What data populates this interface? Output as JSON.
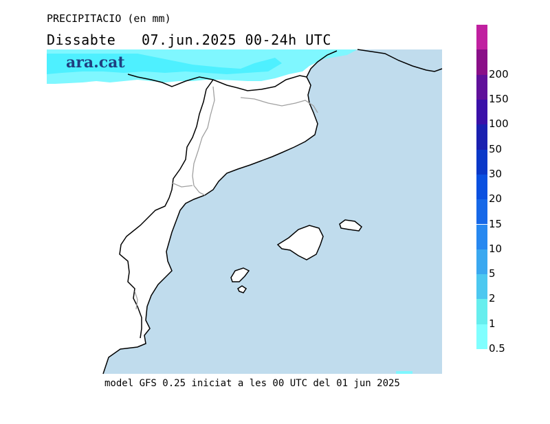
{
  "header": {
    "variable": "PRECIPITACIO (en mm)",
    "date_line": "Dissabte   07.jun.2025 00-24h UTC"
  },
  "brand": {
    "name": "ara.cat"
  },
  "footer": {
    "model_line": "model GFS 0.25 iniciat a les 00 UTC del 01 jun 2025"
  },
  "colors": {
    "sea": "#c0dced",
    "land": "#ffffff",
    "coastline": "#000000",
    "region_border": "#a0a0a0",
    "precip_light": "#7ff7ff",
    "precip_mid": "#4ef0ff"
  },
  "legend": {
    "levels": [
      {
        "label": "0.5",
        "color": "#80ffff"
      },
      {
        "label": "1",
        "color": "#66eeee"
      },
      {
        "label": "2",
        "color": "#4cc8f0"
      },
      {
        "label": "5",
        "color": "#3aa8f0"
      },
      {
        "label": "10",
        "color": "#2788f0"
      },
      {
        "label": "15",
        "color": "#1668e8"
      },
      {
        "label": "20",
        "color": "#0a50e0"
      },
      {
        "label": "30",
        "color": "#0a38c8"
      },
      {
        "label": "50",
        "color": "#1a20b0"
      },
      {
        "label": "100",
        "color": "#3a10a8"
      },
      {
        "label": "150",
        "color": "#60109a"
      },
      {
        "label": "200",
        "color": "#8a0f88"
      },
      {
        "label": "",
        "color": "#c020a0"
      }
    ]
  }
}
